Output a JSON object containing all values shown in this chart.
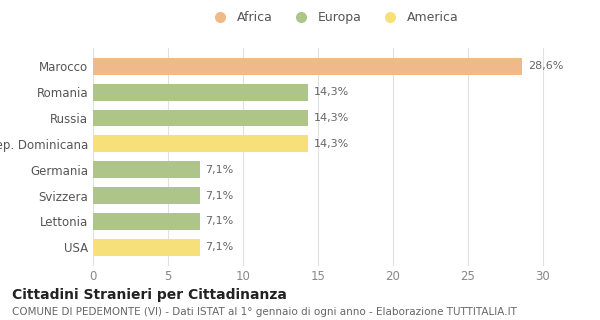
{
  "categories": [
    "Marocco",
    "Romania",
    "Russia",
    "Rep. Dominicana",
    "Germania",
    "Svizzera",
    "Lettonia",
    "USA"
  ],
  "values": [
    28.6,
    14.3,
    14.3,
    14.3,
    7.1,
    7.1,
    7.1,
    7.1
  ],
  "labels": [
    "28,6%",
    "14,3%",
    "14,3%",
    "14,3%",
    "7,1%",
    "7,1%",
    "7,1%",
    "7,1%"
  ],
  "colors": [
    "#f0b98a",
    "#aec58a",
    "#aec58a",
    "#f5e07a",
    "#aec58a",
    "#aec58a",
    "#aec58a",
    "#f5e07a"
  ],
  "legend": [
    {
      "label": "Africa",
      "color": "#f0b98a"
    },
    {
      "label": "Europa",
      "color": "#aec58a"
    },
    {
      "label": "America",
      "color": "#f5e07a"
    }
  ],
  "xlim": [
    0,
    32
  ],
  "xticks": [
    0,
    5,
    10,
    15,
    20,
    25,
    30
  ],
  "title": "Cittadini Stranieri per Cittadinanza",
  "subtitle": "COMUNE DI PEDEMONTE (VI) - Dati ISTAT al 1° gennaio di ogni anno - Elaborazione TUTTITALIA.IT",
  "background_color": "#ffffff",
  "grid_color": "#e0e0e0",
  "bar_height": 0.65,
  "label_fontsize": 8,
  "title_fontsize": 10,
  "subtitle_fontsize": 7.5,
  "ytick_fontsize": 8.5,
  "xtick_fontsize": 8.5,
  "legend_fontsize": 9
}
